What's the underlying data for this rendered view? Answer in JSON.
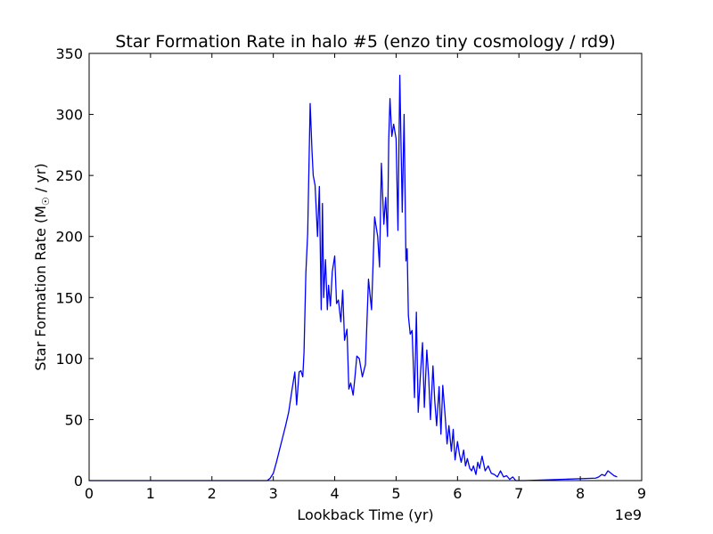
{
  "chart_data": {
    "type": "line",
    "title": "Star Formation Rate in halo #5 (enzo tiny cosmology / rd9)",
    "xlabel": "Lookback Time (yr)",
    "ylabel_main": "Star Formation Rate (M",
    "ylabel_sub": "☉",
    "ylabel_end": " / yr)",
    "x_offset_label": "1e9",
    "xlim": [
      0,
      9
    ],
    "ylim": [
      0,
      350
    ],
    "x_ticks": [
      0,
      1,
      2,
      3,
      4,
      5,
      6,
      7,
      8,
      9
    ],
    "x_tick_labels": [
      "0",
      "1",
      "2",
      "3",
      "4",
      "5",
      "6",
      "7",
      "8",
      "9"
    ],
    "y_ticks": [
      0,
      50,
      100,
      150,
      200,
      250,
      300,
      350
    ],
    "y_tick_labels": [
      "0",
      "50",
      "100",
      "150",
      "200",
      "250",
      "300",
      "350"
    ],
    "grid": false,
    "line_color": "#0000ff",
    "series": [
      {
        "x": [
          0.0,
          2.9,
          2.95,
          3.0,
          3.05,
          3.1,
          3.15,
          3.2,
          3.25,
          3.3,
          3.35,
          3.38,
          3.42,
          3.45,
          3.48,
          3.5,
          3.53,
          3.56,
          3.6,
          3.63,
          3.65,
          3.68,
          3.72,
          3.75,
          3.78,
          3.8,
          3.82,
          3.85,
          3.88,
          3.9,
          3.93,
          3.96,
          4.0,
          4.03,
          4.06,
          4.1,
          4.13,
          4.16,
          4.2,
          4.23,
          4.26,
          4.3,
          4.33,
          4.36,
          4.4,
          4.45,
          4.5,
          4.55,
          4.6,
          4.65,
          4.7,
          4.73,
          4.76,
          4.8,
          4.83,
          4.86,
          4.88,
          4.9,
          4.93,
          4.96,
          5.0,
          5.03,
          5.06,
          5.1,
          5.13,
          5.16,
          5.18,
          5.2,
          5.23,
          5.26,
          5.3,
          5.33,
          5.36,
          5.4,
          5.43,
          5.46,
          5.5,
          5.53,
          5.56,
          5.6,
          5.63,
          5.66,
          5.7,
          5.73,
          5.76,
          5.8,
          5.83,
          5.86,
          5.9,
          5.93,
          5.96,
          6.0,
          6.03,
          6.06,
          6.1,
          6.13,
          6.16,
          6.2,
          6.23,
          6.26,
          6.3,
          6.33,
          6.36,
          6.4,
          6.45,
          6.5,
          6.55,
          6.6,
          6.65,
          6.7,
          6.75,
          6.8,
          6.85,
          6.9,
          6.95,
          7.0,
          7.05,
          7.1,
          8.25,
          8.3,
          8.35,
          8.4,
          8.45,
          8.5,
          8.55,
          8.6
        ],
        "y": [
          0,
          0,
          2,
          6,
          15,
          25,
          35,
          45,
          56,
          73,
          89,
          62,
          89,
          90,
          85,
          105,
          170,
          203,
          309,
          270,
          250,
          242,
          200,
          241,
          140,
          227,
          150,
          181,
          140,
          160,
          143,
          171,
          184,
          145,
          148,
          130,
          156,
          115,
          124,
          75,
          80,
          70,
          85,
          102,
          100,
          85,
          95,
          165,
          140,
          216,
          200,
          175,
          260,
          210,
          232,
          200,
          280,
          313,
          282,
          292,
          280,
          205,
          332,
          220,
          300,
          180,
          190,
          135,
          120,
          123,
          68,
          138,
          56,
          90,
          113,
          60,
          107,
          85,
          50,
          94,
          65,
          45,
          77,
          38,
          78,
          52,
          30,
          45,
          24,
          42,
          17,
          32,
          22,
          15,
          25,
          12,
          18,
          10,
          8,
          12,
          5,
          15,
          10,
          20,
          8,
          12,
          6,
          5,
          3,
          8,
          3,
          4,
          1,
          3,
          0,
          0,
          0,
          0,
          2,
          3,
          5,
          4,
          8,
          6,
          4,
          3
        ]
      }
    ]
  }
}
